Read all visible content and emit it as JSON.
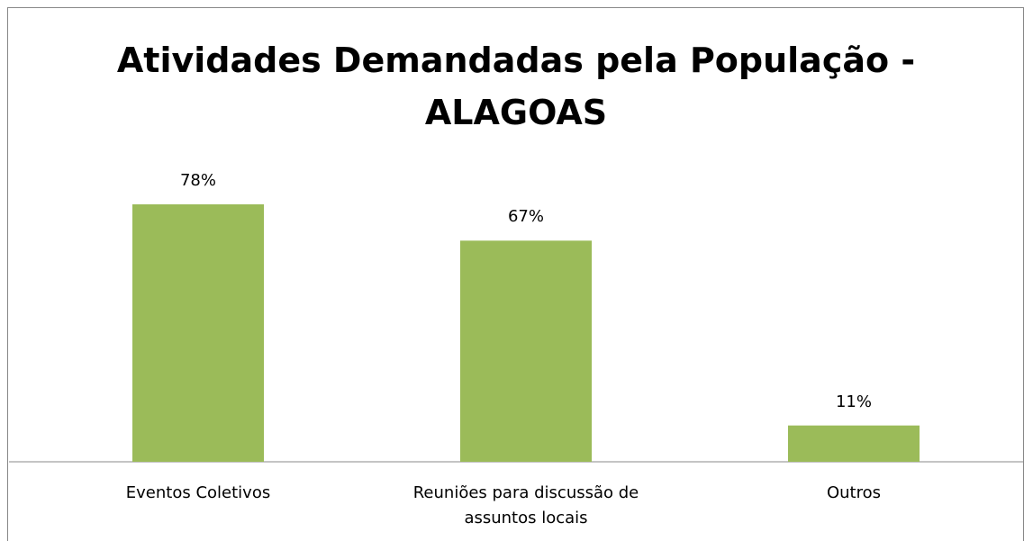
{
  "chart_data": {
    "type": "bar",
    "title": "Atividades Demandadas pela População - ALAGOAS",
    "categories": [
      "Eventos Coletivos",
      "Reuniões para discussão de assuntos locais",
      "Outros"
    ],
    "values": [
      78,
      67,
      11
    ],
    "value_labels": [
      "78%",
      "67%",
      "11%"
    ],
    "color": "#9bbb59"
  }
}
